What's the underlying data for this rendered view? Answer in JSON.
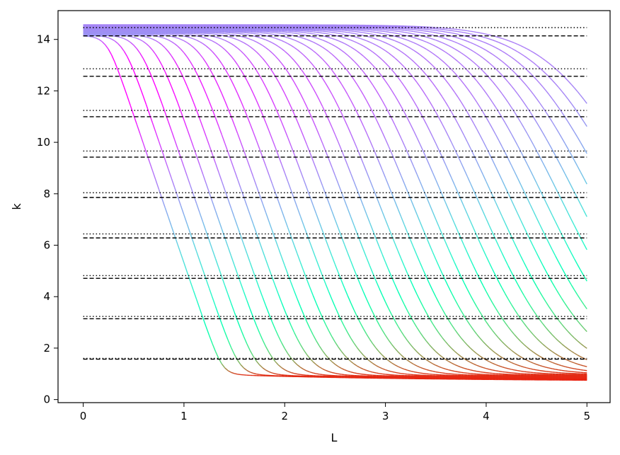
{
  "chart_data": {
    "type": "line",
    "title": "",
    "xlabel": "L",
    "ylabel": "k",
    "xlim": [
      -0.25,
      5.23
    ],
    "ylim": [
      -0.12,
      15.12
    ],
    "x_ticks": [
      0,
      1,
      2,
      3,
      4,
      5
    ],
    "x_tick_labels": [
      "0",
      "1",
      "2",
      "3",
      "4",
      "5"
    ],
    "y_ticks": [
      0,
      2,
      4,
      6,
      8,
      10,
      12,
      14
    ],
    "y_tick_labels": [
      "0",
      "2",
      "4",
      "6",
      "8",
      "10",
      "12",
      "14"
    ],
    "grid": false,
    "legend": "none",
    "curve_families": [
      "exp(-L)"
    ],
    "dashed_reference_levels": [
      1.571,
      3.142,
      4.712,
      6.283,
      7.854,
      9.425,
      10.996,
      12.566,
      14.137
    ],
    "dotted_reference_levels": [
      1.6,
      3.23,
      4.82,
      6.44,
      8.04,
      9.66,
      11.24,
      12.86,
      14.46
    ],
    "series_x_range": [
      0.0,
      5.0
    ],
    "colormap": "rainbow",
    "colors": {
      "curve_low": "#ff3a22",
      "curve_mid": "#80ffb4",
      "curve_high": "#6a2cf0",
      "dense_region": "#000000",
      "reference_lines": "#000000"
    }
  }
}
